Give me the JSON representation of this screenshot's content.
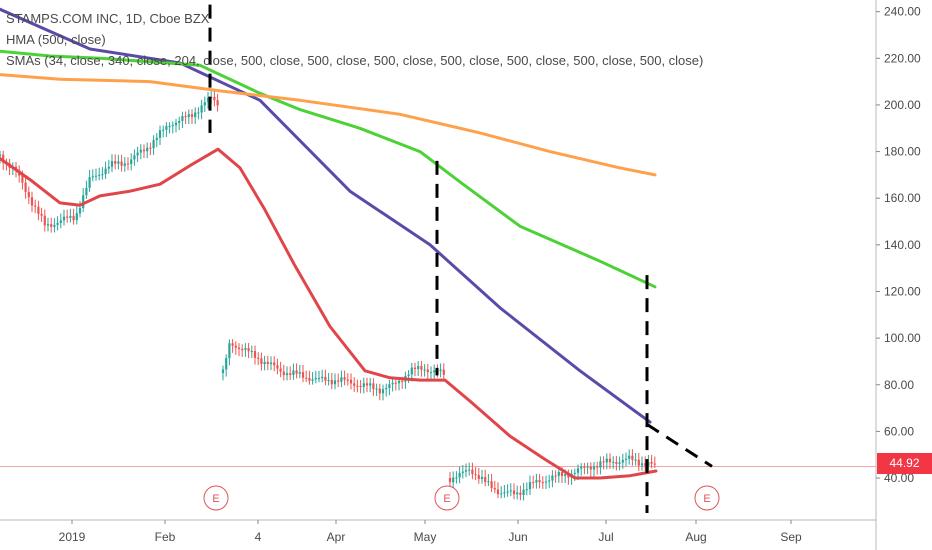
{
  "legend": {
    "symbol": "STAMPS.COM INC, 1D, Cboe BZX",
    "hma": "HMA (500, close)",
    "smas": "SMAs (34, close, 340, close, 204, close, 500, close, 500, close, 500, close, 500, close, 500, close, 500, close, 500, close)"
  },
  "last_price": "44.92",
  "earnings_label": "E",
  "chart_data": {
    "type": "line",
    "ylim": [
      22,
      245
    ],
    "y_ticks": [
      "240.00",
      "220.00",
      "200.00",
      "180.00",
      "160.00",
      "140.00",
      "120.00",
      "100.00",
      "80.00",
      "60.00",
      "40.00"
    ],
    "x_ticks": [
      "2019",
      "Feb",
      "4",
      "Apr",
      "May",
      "Jun",
      "Jul",
      "Aug",
      "Sep"
    ],
    "colors": {
      "hma": "#5b4ba8",
      "sma_green": "#4cd137",
      "sma_orange": "#ffa04d",
      "sma_red": "#e0454a",
      "up": "#26a69a",
      "down": "#ef5350",
      "price_line": "#f4a7a9"
    },
    "series": [
      {
        "name": "HMA (500, close)",
        "points": [
          [
            0,
            241
          ],
          [
            90,
            224
          ],
          [
            180,
            218
          ],
          [
            260,
            202
          ],
          [
            350,
            163
          ],
          [
            430,
            140
          ],
          [
            500,
            113
          ],
          [
            580,
            86
          ],
          [
            650,
            64
          ]
        ]
      },
      {
        "name": "SMA green",
        "points": [
          [
            0,
            223
          ],
          [
            50,
            221
          ],
          [
            100,
            220
          ],
          [
            200,
            217
          ],
          [
            260,
            205
          ],
          [
            300,
            198
          ],
          [
            360,
            190
          ],
          [
            420,
            180
          ],
          [
            460,
            167
          ],
          [
            520,
            148
          ],
          [
            600,
            133
          ],
          [
            655,
            122
          ]
        ]
      },
      {
        "name": "SMA orange",
        "points": [
          [
            0,
            213
          ],
          [
            60,
            211
          ],
          [
            150,
            210
          ],
          [
            220,
            206
          ],
          [
            300,
            202
          ],
          [
            400,
            196
          ],
          [
            480,
            188
          ],
          [
            550,
            180
          ],
          [
            620,
            173
          ],
          [
            655,
            170
          ]
        ]
      },
      {
        "name": "SMA red",
        "points": [
          [
            0,
            177
          ],
          [
            30,
            168
          ],
          [
            60,
            158
          ],
          [
            80,
            157
          ],
          [
            100,
            161
          ],
          [
            130,
            163
          ],
          [
            160,
            166
          ],
          [
            190,
            174
          ],
          [
            218,
            181
          ],
          [
            240,
            173
          ],
          [
            265,
            155
          ],
          [
            295,
            131
          ],
          [
            330,
            105
          ],
          [
            365,
            86
          ],
          [
            390,
            83
          ],
          [
            420,
            82
          ],
          [
            445,
            82
          ],
          [
            470,
            73
          ],
          [
            510,
            58
          ],
          [
            545,
            48
          ],
          [
            575,
            40
          ],
          [
            600,
            40
          ],
          [
            630,
            41
          ],
          [
            656,
            43
          ]
        ]
      }
    ],
    "price_segments": [
      {
        "points": [
          [
            0,
            178
          ],
          [
            15,
            172
          ],
          [
            30,
            160
          ],
          [
            45,
            148
          ],
          [
            58,
            150
          ],
          [
            75,
            152
          ],
          [
            90,
            168
          ],
          [
            110,
            174
          ],
          [
            130,
            176
          ],
          [
            150,
            183
          ],
          [
            170,
            192
          ],
          [
            190,
            195
          ],
          [
            205,
            201
          ],
          [
            213,
            203
          ],
          [
            218,
            200
          ]
        ]
      },
      {
        "points": [
          [
            223,
            85
          ],
          [
            230,
            98
          ],
          [
            240,
            96
          ],
          [
            260,
            91
          ],
          [
            280,
            86
          ],
          [
            300,
            84
          ],
          [
            320,
            82
          ],
          [
            340,
            82
          ],
          [
            360,
            80
          ],
          [
            380,
            78
          ],
          [
            395,
            80
          ],
          [
            410,
            86
          ],
          [
            425,
            87
          ],
          [
            440,
            85
          ],
          [
            446,
            84
          ]
        ]
      },
      {
        "points": [
          [
            450,
            40
          ],
          [
            460,
            41
          ],
          [
            470,
            44
          ],
          [
            485,
            38
          ],
          [
            500,
            34
          ],
          [
            515,
            33
          ],
          [
            530,
            37
          ],
          [
            550,
            40
          ],
          [
            570,
            42
          ],
          [
            590,
            45
          ],
          [
            610,
            47
          ],
          [
            630,
            48
          ],
          [
            648,
            46
          ],
          [
            655,
            45
          ]
        ]
      }
    ],
    "dashed_lines": [
      {
        "points": [
          [
            210,
            243
          ],
          [
            210,
            188
          ]
        ]
      },
      {
        "points": [
          [
            437,
            176
          ],
          [
            437,
            84
          ]
        ]
      },
      {
        "points": [
          [
            647,
            127
          ],
          [
            647,
            25
          ]
        ]
      },
      {
        "points": [
          [
            647,
            63
          ],
          [
            712,
            45
          ]
        ]
      }
    ],
    "earnings": [
      216,
      447,
      707
    ],
    "current_price": 44.92
  }
}
